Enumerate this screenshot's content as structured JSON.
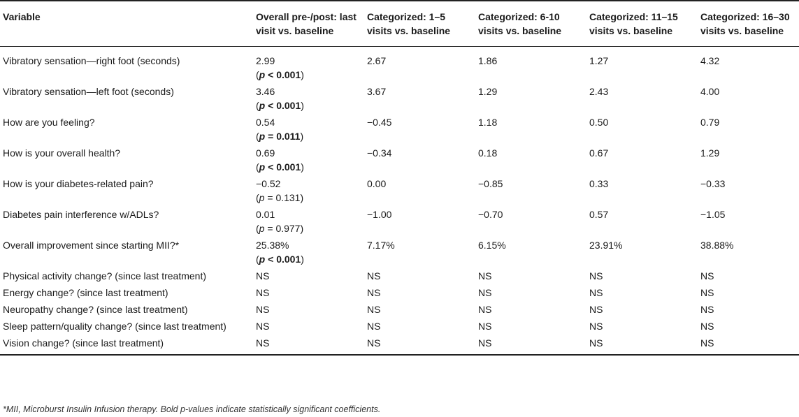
{
  "table": {
    "headers": [
      "Variable",
      "Overall pre-/post: last visit vs. baseline",
      "Categorized: 1–5 visits vs. baseline",
      "Categorized: 6-10 visits vs. baseline",
      "Categorized: 11–15 visits vs. baseline",
      "Categorized: 16–30 visits vs. baseline"
    ],
    "rows": [
      {
        "variable": "Vibratory sensation—right foot (seconds)",
        "overall": "2.99",
        "p_open": "(",
        "p_sym": "p",
        "p_op": " < ",
        "p_val": "0.001",
        "p_close": ")",
        "c1": "2.67",
        "c2": "1.86",
        "c3": "1.27",
        "c4": "4.32"
      },
      {
        "variable": "Vibratory sensation—left foot (seconds)",
        "overall": "3.46",
        "p_open": "(",
        "p_sym": "p",
        "p_op": " < ",
        "p_val": "0.001",
        "p_close": ")",
        "c1": "3.67",
        "c2": "1.29",
        "c3": "2.43",
        "c4": "4.00"
      },
      {
        "variable": "How are you feeling?",
        "overall": "0.54",
        "p_open": "(",
        "p_sym": "p",
        "p_op": " = ",
        "p_val": "0.011",
        "p_close": ")",
        "c1": "−0.45",
        "c2": "1.18",
        "c3": "0.50",
        "c4": "0.79"
      },
      {
        "variable": "How is your overall health?",
        "overall": "0.69",
        "p_open": "(",
        "p_sym": "p",
        "p_op": " < ",
        "p_val": "0.001",
        "p_close": ")",
        "c1": "−0.34",
        "c2": "0.18",
        "c3": "0.67",
        "c4": "1.29"
      },
      {
        "variable": "How is your diabetes-related pain?",
        "overall": "−0.52",
        "p_open": "(",
        "p_sym": "p",
        "p_op": " = ",
        "p_val": "0.131",
        "p_close": ")",
        "c1": "0.00",
        "c2": "−0.85",
        "c3": "0.33",
        "c4": "−0.33"
      },
      {
        "variable": "Diabetes pain interference w/ADLs?",
        "overall": "0.01",
        "p_open": "(",
        "p_sym": "p",
        "p_op": " = ",
        "p_val": "0.977",
        "p_close": ")",
        "c1": "−1.00",
        "c2": "−0.70",
        "c3": "0.57",
        "c4": "−1.05"
      },
      {
        "variable": "Overall improvement since starting MII?*",
        "overall": "25.38%",
        "p_open": "(",
        "p_sym": "p",
        "p_op": " < ",
        "p_val": "0.001",
        "p_close": ")",
        "c1": "7.17%",
        "c2": "6.15%",
        "c3": "23.91%",
        "c4": "38.88%"
      },
      {
        "variable": "Physical activity change? (since last treatment)",
        "overall": "NS",
        "c1": "NS",
        "c2": "NS",
        "c3": "NS",
        "c4": "NS"
      },
      {
        "variable": "Energy change? (since last treatment)",
        "overall": "NS",
        "c1": "NS",
        "c2": "NS",
        "c3": "NS",
        "c4": "NS"
      },
      {
        "variable": "Neuropathy change? (since last treatment)",
        "overall": "NS",
        "c1": "NS",
        "c2": "NS",
        "c3": "NS",
        "c4": "NS"
      },
      {
        "variable": "Sleep pattern/quality change? (since last treatment)",
        "overall": "NS",
        "c1": "NS",
        "c2": "NS",
        "c3": "NS",
        "c4": "NS"
      },
      {
        "variable": "Vision change? (since last treatment)",
        "overall": "NS",
        "c1": "NS",
        "c2": "NS",
        "c3": "NS",
        "c4": "NS"
      }
    ]
  },
  "footnote": "*MII, Microburst Insulin Infusion therapy. Bold p-values indicate statistically significant coefficients.",
  "colors": {
    "text": "#1a1a1a",
    "rule": "#222222"
  }
}
